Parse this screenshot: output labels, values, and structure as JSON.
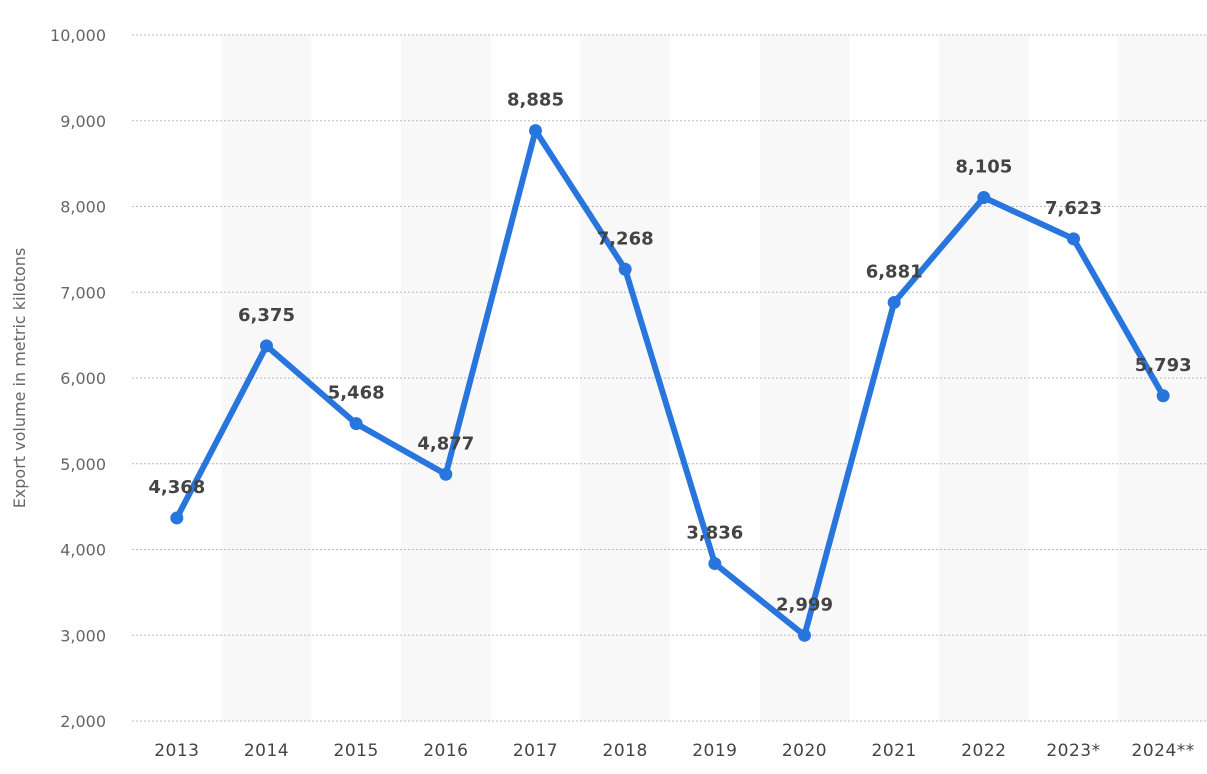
{
  "chart_data": {
    "type": "line",
    "title": "",
    "xlabel": "",
    "ylabel": "Export volume in metric kilotons",
    "categories": [
      "2013",
      "2014",
      "2015",
      "2016",
      "2017",
      "2018",
      "2019",
      "2020",
      "2021",
      "2022",
      "2023*",
      "2024**"
    ],
    "series": [
      {
        "values": [
          4368,
          6375,
          5468,
          4877,
          8885,
          7268,
          3836,
          2999,
          6881,
          8105,
          7623,
          5793
        ],
        "labels": [
          "4,368",
          "6,375",
          "5,468",
          "4,877",
          "8,885",
          "7,268",
          "3,836",
          "2,999",
          "6,881",
          "8,105",
          "7,623",
          "5,793"
        ],
        "color": "#2876dd"
      }
    ],
    "ylim": [
      2000,
      10000
    ],
    "yticks": [
      2000,
      3000,
      4000,
      5000,
      6000,
      7000,
      8000,
      9000,
      10000
    ],
    "ytick_labels": [
      "2,000",
      "3,000",
      "4,000",
      "5,000",
      "6,000",
      "7,000",
      "8,000",
      "9,000",
      "10,000"
    ],
    "grid": true,
    "alternating_bands": true,
    "band_color": "#f8f8f8"
  }
}
